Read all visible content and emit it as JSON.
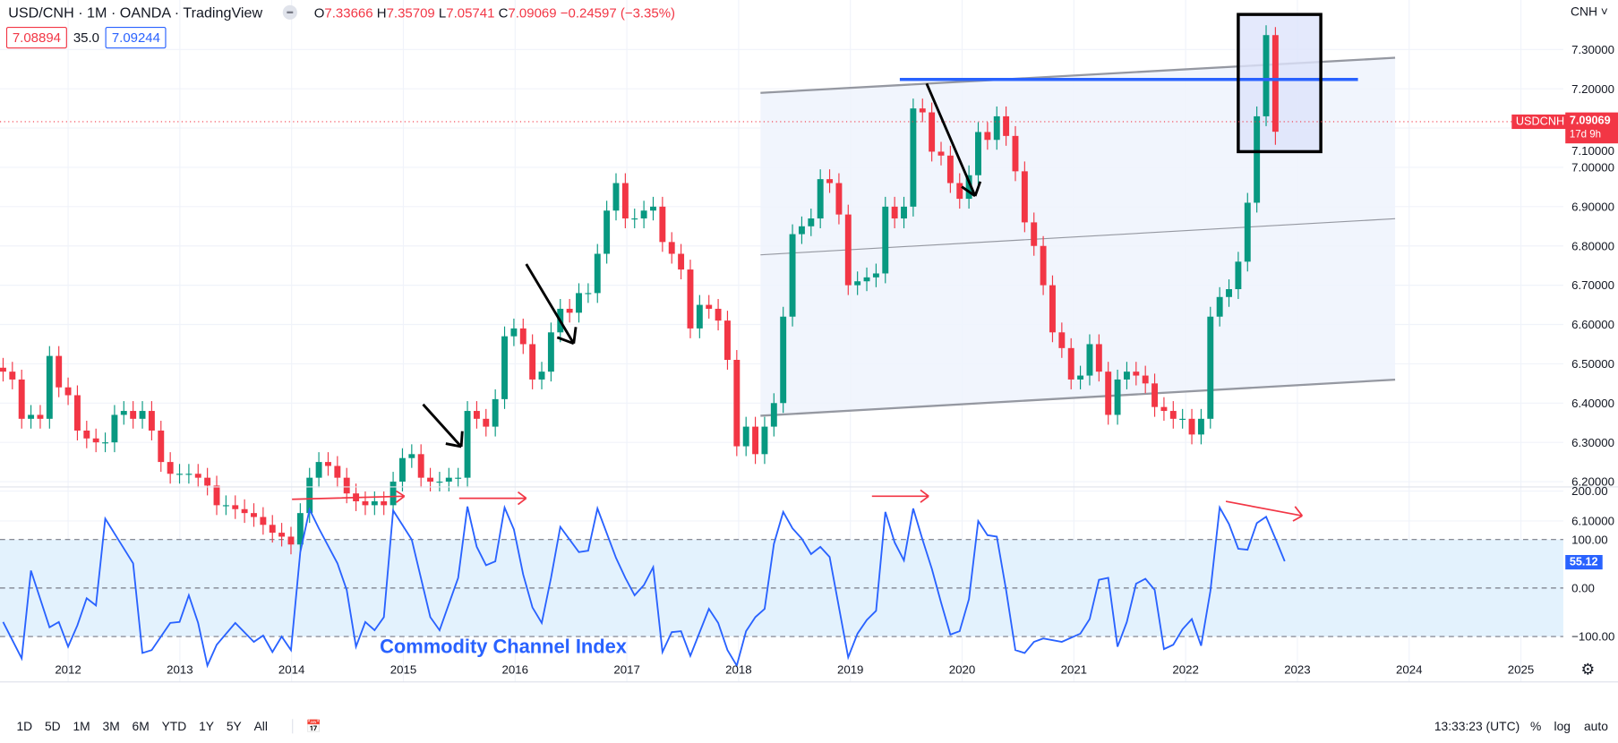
{
  "header": {
    "title": "USD/CNH · 1M · OANDA · TradingView",
    "open_label": "O",
    "open": "7.33666",
    "high_label": "H",
    "high": "7.35709",
    "low_label": "L",
    "low": "7.05741",
    "close_label": "C",
    "close": "7.09069",
    "change": "−0.24597 (−3.35%)",
    "bid": "7.08894",
    "spread": "35.0",
    "ask": "7.09244"
  },
  "axis": {
    "currency": "CNH",
    "price_ticks": [
      "7.30000",
      "7.20000",
      "7.10000",
      "7.00000",
      "6.90000",
      "6.80000",
      "6.70000",
      "6.60000",
      "6.50000",
      "6.40000",
      "6.30000",
      "6.20000",
      "6.10000"
    ],
    "cci_ticks": [
      "200.00",
      "100.00",
      "0.00",
      "−100.00"
    ],
    "years": [
      "2012",
      "2013",
      "2014",
      "2015",
      "2016",
      "2017",
      "2018",
      "2019",
      "2020",
      "2021",
      "2022",
      "2023",
      "2024",
      "2025"
    ],
    "symbol_label": "USDCNH",
    "last_price": "7.09069",
    "countdown": "17d 9h",
    "cci_last": "55.12"
  },
  "annotations": {
    "cci_label": "Commodity Channel Index"
  },
  "toolbar": {
    "ranges": [
      "1D",
      "5D",
      "1M",
      "3M",
      "6M",
      "YTD",
      "1Y",
      "5Y",
      "All"
    ],
    "time": "13:33:23 (UTC)",
    "percent": "%",
    "log": "log",
    "auto": "auto"
  },
  "colors": {
    "up": "#089981",
    "down": "#f23645",
    "cci": "#2962ff",
    "accent": "#2962ff"
  },
  "chart_data": [
    {
      "type": "candlestick",
      "title": "USD/CNH monthly",
      "start_month": "2011-06",
      "ylim": [
        6.0,
        7.4
      ],
      "ylabel": "CNH",
      "closes": [
        6.48,
        6.46,
        6.36,
        6.37,
        6.36,
        6.52,
        6.44,
        6.42,
        6.33,
        6.31,
        6.3,
        6.3,
        6.37,
        6.38,
        6.36,
        6.38,
        6.33,
        6.25,
        6.22,
        6.22,
        6.22,
        6.21,
        6.19,
        6.14,
        6.14,
        6.13,
        6.12,
        6.11,
        6.09,
        6.07,
        6.06,
        6.04,
        6.12,
        6.21,
        6.25,
        6.24,
        6.21,
        6.17,
        6.15,
        6.14,
        6.15,
        6.14,
        6.2,
        6.26,
        6.27,
        6.21,
        6.2,
        6.2,
        6.21,
        6.21,
        6.38,
        6.36,
        6.34,
        6.41,
        6.57,
        6.59,
        6.55,
        6.46,
        6.48,
        6.58,
        6.64,
        6.63,
        6.68,
        6.68,
        6.78,
        6.89,
        6.96,
        6.87,
        6.87,
        6.89,
        6.9,
        6.81,
        6.78,
        6.74,
        6.59,
        6.65,
        6.64,
        6.61,
        6.51,
        6.29,
        6.34,
        6.27,
        6.34,
        6.4,
        6.62,
        6.83,
        6.85,
        6.87,
        6.97,
        6.96,
        6.88,
        6.7,
        6.71,
        6.72,
        6.73,
        6.9,
        6.87,
        6.9,
        7.15,
        7.14,
        7.04,
        7.03,
        6.96,
        6.92,
        6.98,
        7.09,
        7.07,
        7.13,
        7.08,
        6.99,
        6.86,
        6.8,
        6.7,
        6.58,
        6.54,
        6.46,
        6.47,
        6.55,
        6.48,
        6.37,
        6.46,
        6.48,
        6.47,
        6.45,
        6.39,
        6.38,
        6.36,
        6.36,
        6.32,
        6.36,
        6.62,
        6.67,
        6.69,
        6.76,
        6.91,
        7.13,
        7.3367,
        7.09069
      ],
      "last_candle": {
        "open": 7.33666,
        "high": 7.35709,
        "low": 7.05741,
        "close": 7.09069
      }
    },
    {
      "type": "line",
      "title": "Commodity Channel Index",
      "ylim": [
        -150,
        200
      ],
      "levels": [
        100,
        0,
        -100
      ],
      "points": [
        [
          0,
          -70
        ],
        [
          2,
          -145
        ],
        [
          3,
          36
        ],
        [
          5,
          -81
        ],
        [
          6,
          -70
        ],
        [
          7,
          -121
        ],
        [
          8,
          -77
        ],
        [
          9,
          -21
        ],
        [
          10,
          -36
        ],
        [
          11,
          143
        ],
        [
          14,
          51
        ],
        [
          15,
          -134
        ],
        [
          16,
          -128
        ],
        [
          18,
          -72
        ],
        [
          19,
          -70
        ],
        [
          20,
          -15
        ],
        [
          21,
          -72
        ],
        [
          22,
          -160
        ],
        [
          23,
          -117
        ],
        [
          25,
          -72
        ],
        [
          27,
          -111
        ],
        [
          28,
          -98
        ],
        [
          29,
          -132
        ],
        [
          30,
          -100
        ],
        [
          31,
          -128
        ],
        [
          32,
          74
        ],
        [
          33,
          162
        ],
        [
          34,
          123
        ],
        [
          36,
          51
        ],
        [
          37,
          -4
        ],
        [
          38,
          -121
        ],
        [
          39,
          -70
        ],
        [
          40,
          -87
        ],
        [
          41,
          -60
        ],
        [
          42,
          160
        ],
        [
          44,
          100
        ],
        [
          46,
          -60
        ],
        [
          47,
          -87
        ],
        [
          49,
          21
        ],
        [
          50,
          168
        ],
        [
          51,
          85
        ],
        [
          52,
          47
        ],
        [
          53,
          55
        ],
        [
          54,
          166
        ],
        [
          55,
          121
        ],
        [
          56,
          28
        ],
        [
          57,
          -40
        ],
        [
          58,
          -72
        ],
        [
          59,
          21
        ],
        [
          60,
          126
        ],
        [
          62,
          74
        ],
        [
          63,
          77
        ],
        [
          64,
          164
        ],
        [
          66,
          62
        ],
        [
          67,
          21
        ],
        [
          68,
          -15
        ],
        [
          69,
          6
        ],
        [
          70,
          43
        ],
        [
          71,
          -132
        ],
        [
          72,
          -91
        ],
        [
          73,
          -89
        ],
        [
          74,
          -140
        ],
        [
          76,
          -43
        ],
        [
          77,
          -72
        ],
        [
          78,
          -128
        ],
        [
          79,
          -160
        ],
        [
          80,
          -89
        ],
        [
          81,
          -60
        ],
        [
          82,
          -43
        ],
        [
          83,
          91
        ],
        [
          84,
          157
        ],
        [
          85,
          123
        ],
        [
          86,
          102
        ],
        [
          87,
          70
        ],
        [
          88,
          85
        ],
        [
          89,
          64
        ],
        [
          91,
          -143
        ],
        [
          92,
          -94
        ],
        [
          93,
          -66
        ],
        [
          94,
          -47
        ],
        [
          95,
          157
        ],
        [
          96,
          94
        ],
        [
          97,
          57
        ],
        [
          98,
          164
        ],
        [
          99,
          100
        ],
        [
          100,
          40
        ],
        [
          101,
          -30
        ],
        [
          102,
          -96
        ],
        [
          103,
          -89
        ],
        [
          104,
          -23
        ],
        [
          105,
          138
        ],
        [
          106,
          109
        ],
        [
          107,
          106
        ],
        [
          108,
          -4
        ],
        [
          109,
          -128
        ],
        [
          110,
          -134
        ],
        [
          111,
          -111
        ],
        [
          112,
          -104
        ],
        [
          114,
          -111
        ],
        [
          116,
          -94
        ],
        [
          117,
          -64
        ],
        [
          118,
          17
        ],
        [
          119,
          21
        ],
        [
          120,
          -121
        ],
        [
          121,
          -70
        ],
        [
          122,
          9
        ],
        [
          123,
          19
        ],
        [
          124,
          -4
        ],
        [
          125,
          -126
        ],
        [
          126,
          -117
        ],
        [
          127,
          -85
        ],
        [
          128,
          -64
        ],
        [
          129,
          -119
        ],
        [
          130,
          -6
        ],
        [
          131,
          166
        ],
        [
          132,
          132
        ],
        [
          133,
          81
        ],
        [
          134,
          79
        ],
        [
          135,
          134
        ],
        [
          136,
          147
        ],
        [
          137,
          102
        ],
        [
          138,
          55.12
        ]
      ]
    }
  ]
}
